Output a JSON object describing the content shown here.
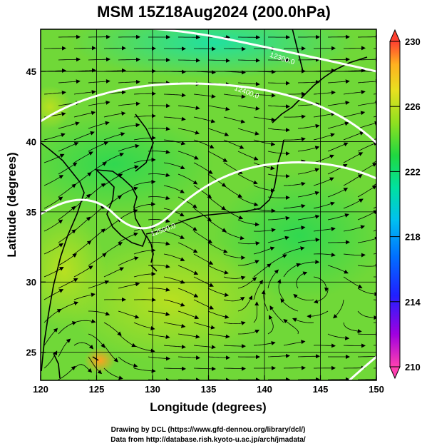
{
  "chart_data": {
    "type": "heatmap",
    "title": "MSM 15Z18Aug2024 (200.0hPa)",
    "xlabel": "Longitude (degrees)",
    "ylabel": "Latitude (degrees)",
    "xlim": [
      120,
      150
    ],
    "ylim": [
      23,
      48
    ],
    "x_ticks": [
      "120",
      "125",
      "130",
      "135",
      "140",
      "145",
      "150"
    ],
    "y_ticks": [
      "25",
      "30",
      "35",
      "40",
      "45"
    ],
    "grid": true,
    "colorbar": {
      "range": [
        210,
        230
      ],
      "tick_labels": [
        "230",
        "226",
        "222",
        "218",
        "214",
        "210"
      ],
      "colors": [
        "#ff40b0",
        "#8000ff",
        "#0040ff",
        "#00c0ff",
        "#00e8a0",
        "#20d840",
        "#90e020",
        "#e8e020",
        "#ffb020",
        "#ff5030"
      ]
    },
    "contours": [
      {
        "label": "12300.0"
      },
      {
        "label": "12400.0"
      },
      {
        "label": "12500.0"
      }
    ]
  },
  "credits": {
    "line1": "Drawing by DCL (https://www.gfd-dennou.org/library/dcl/)",
    "line2": "Data from http://database.rish.kyoto-u.ac.jp/arch/jmadata/"
  }
}
